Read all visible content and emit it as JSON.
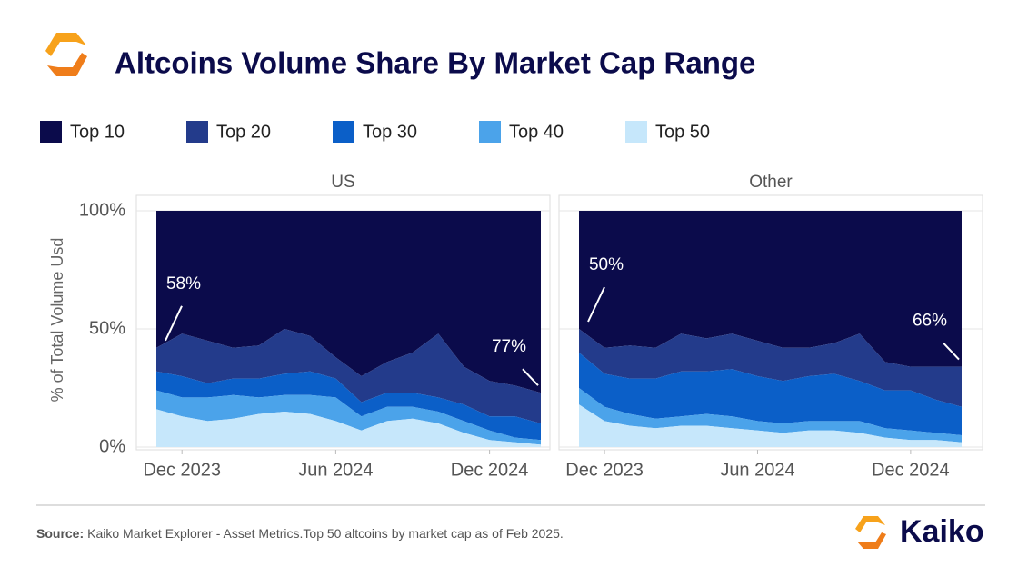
{
  "title": "Altcoins Volume Share By Market Cap Range",
  "source_label": "Source:",
  "source_text": "Kaiko Market Explorer - Asset Metrics.Top 50 altcoins by market cap as of Feb 2025.",
  "logo_text": "Kaiko",
  "chart_data": {
    "type": "area",
    "stacked": true,
    "ylabel": "% of Total Volume Usd",
    "x": [
      "2023-11",
      "2023-12",
      "2024-01",
      "2024-02",
      "2024-03",
      "2024-04",
      "2024-05",
      "2024-06",
      "2024-07",
      "2024-08",
      "2024-09",
      "2024-10",
      "2024-11",
      "2024-12",
      "2025-01",
      "2025-02"
    ],
    "xlim": [
      "2023-11",
      "2025-02"
    ],
    "xticks": [
      {
        "value": "2023-12",
        "label": "Dec 2023"
      },
      {
        "value": "2024-06",
        "label": "Jun 2024"
      },
      {
        "value": "2024-12",
        "label": "Dec 2024"
      }
    ],
    "ylim": [
      0,
      100
    ],
    "yticks": [
      {
        "value": 0,
        "label": "0%"
      },
      {
        "value": 50,
        "label": "50%"
      },
      {
        "value": 100,
        "label": "100%"
      }
    ],
    "grid": true,
    "series": [
      {
        "name": "Top 10",
        "color": "#0b0b4b"
      },
      {
        "name": "Top 20",
        "color": "#233b8b"
      },
      {
        "name": "Top 30",
        "color": "#0b5fc8"
      },
      {
        "name": "Top 40",
        "color": "#4ba3ea"
      },
      {
        "name": "Top 50",
        "color": "#c6e7fb"
      }
    ],
    "panels": [
      {
        "title": "US",
        "series": [
          {
            "values": [
              58,
              52,
              55,
              58,
              57,
              50,
              53,
              62,
              70,
              64,
              60,
              52,
              66,
              72,
              74,
              77
            ]
          },
          {
            "values": [
              10,
              18,
              18,
              13,
              14,
              19,
              15,
              9,
              11,
              13,
              17,
              27,
              16,
              15,
              13,
              13
            ]
          },
          {
            "values": [
              8,
              9,
              6,
              7,
              8,
              9,
              10,
              8,
              6,
              6,
              6,
              6,
              7,
              6,
              9,
              7
            ]
          },
          {
            "values": [
              8,
              8,
              10,
              10,
              7,
              7,
              8,
              10,
              6,
              6,
              5,
              5,
              5,
              4,
              2,
              2
            ]
          },
          {
            "values": [
              16,
              13,
              11,
              12,
              14,
              15,
              14,
              11,
              7,
              11,
              12,
              10,
              6,
              3,
              2,
              1
            ]
          }
        ],
        "annotations": [
          {
            "text": "58%",
            "x": "2023-11"
          },
          {
            "text": "77%",
            "x": "2025-02"
          }
        ]
      },
      {
        "title": "Other",
        "series": [
          {
            "values": [
              50,
              58,
              57,
              58,
              52,
              54,
              52,
              55,
              58,
              58,
              56,
              52,
              64,
              66,
              66,
              66
            ]
          },
          {
            "values": [
              10,
              11,
              14,
              13,
              16,
              14,
              15,
              15,
              14,
              12,
              13,
              20,
              12,
              10,
              14,
              17
            ]
          },
          {
            "values": [
              15,
              14,
              15,
              17,
              19,
              18,
              20,
              19,
              18,
              19,
              20,
              17,
              16,
              17,
              14,
              12
            ]
          },
          {
            "values": [
              7,
              6,
              5,
              4,
              4,
              5,
              5,
              4,
              4,
              4,
              4,
              5,
              4,
              4,
              3,
              3
            ]
          },
          {
            "values": [
              18,
              11,
              9,
              8,
              9,
              9,
              8,
              7,
              6,
              7,
              7,
              6,
              4,
              3,
              3,
              2
            ]
          }
        ],
        "annotations": [
          {
            "text": "50%",
            "x": "2023-11"
          },
          {
            "text": "66%",
            "x": "2025-02"
          }
        ]
      }
    ]
  }
}
